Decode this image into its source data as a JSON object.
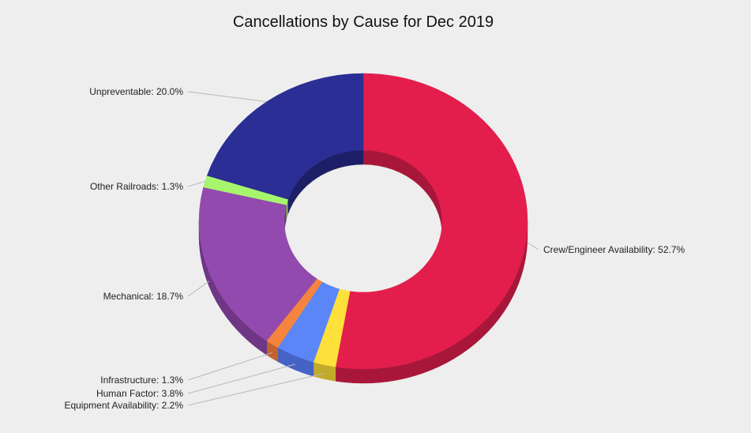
{
  "chart_data": {
    "type": "pie",
    "variant": "3d-donut",
    "title": "Cancellations by Cause for Dec 2019",
    "slices": [
      {
        "label": "Crew/Engineer Availability",
        "value": 52.7,
        "display": "Crew/Engineer Availability: 52.7%",
        "color": "#e31e4c",
        "side_color": "#a8173a"
      },
      {
        "label": "Equipment Availability",
        "value": 2.2,
        "display": "Equipment Availability: 2.2%",
        "color": "#fde03a",
        "side_color": "#c2ab2a"
      },
      {
        "label": "Human Factor",
        "value": 3.8,
        "display": "Human Factor: 3.8%",
        "color": "#5b86f7",
        "side_color": "#4563c4"
      },
      {
        "label": "Infrastructure",
        "value": 1.3,
        "display": "Infrastructure: 1.3%",
        "color": "#f5843f",
        "side_color": "#c0632d"
      },
      {
        "label": "Mechanical",
        "value": 18.7,
        "display": "Mechanical: 18.7%",
        "color": "#934aae",
        "side_color": "#6e3684"
      },
      {
        "label": "Other Railroads",
        "value": 1.3,
        "display": "Other Railroads: 1.3%",
        "color": "#a6f56d",
        "side_color": "#7dba50"
      },
      {
        "label": "Unpreventable",
        "value": 20.0,
        "display": "Unpreventable: 20.0%",
        "color": "#2b2e94",
        "side_color": "#1d1f66"
      }
    ]
  }
}
